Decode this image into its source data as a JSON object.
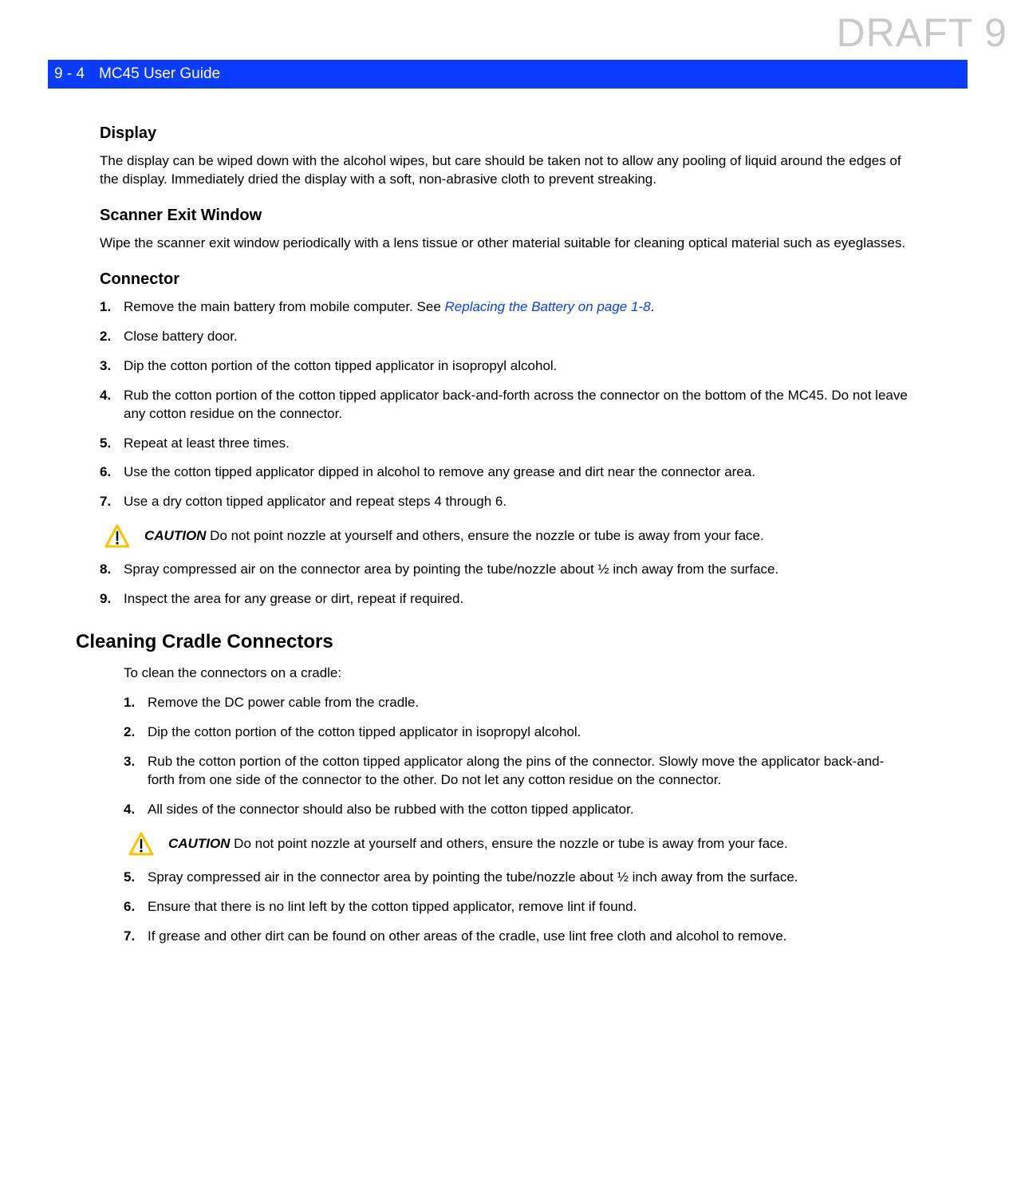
{
  "watermark_text": "DRAFT 9",
  "header": {
    "page_ref": "9 - 4",
    "title": "MC45 User Guide"
  },
  "header_style": {
    "bg_color": "#0a3cff",
    "text_color": "#ffffff",
    "font_size": 19
  },
  "watermark_style": {
    "color": "#c9c9c9",
    "font_size": 50
  },
  "link_style": {
    "color": "#0a3cff",
    "italic": true
  },
  "caution_icon": {
    "stroke_color": "#f9c400",
    "fill_color": "none",
    "bang_color": "#000000"
  },
  "sections": {
    "display": {
      "heading": "Display",
      "text": "The display can be wiped down with the alcohol wipes, but care should be taken not to allow any pooling of liquid around the edges of the display. Immediately dried the display with a soft, non-abrasive cloth to prevent streaking."
    },
    "scanner": {
      "heading": "Scanner Exit Window",
      "text": "Wipe the scanner exit window periodically with a lens tissue or other material suitable for cleaning optical material such as eyeglasses."
    },
    "connector": {
      "heading": "Connector",
      "steps_a": [
        {
          "pre": "Remove the main battery from mobile computer. See ",
          "link": "Replacing the Battery on page 1-8",
          "post": "."
        },
        {
          "pre": "Close battery door."
        },
        {
          "pre": "Dip the cotton portion of the cotton tipped applicator in isopropyl alcohol."
        },
        {
          "pre": "Rub the cotton portion of the cotton tipped applicator back-and-forth across the connector on the bottom of the MC45. Do not leave any cotton residue on the connector."
        },
        {
          "pre": "Repeat at least three times."
        },
        {
          "pre": "Use the cotton tipped applicator dipped in alcohol to remove any grease and dirt near the connector area."
        },
        {
          "pre": "Use a dry cotton tipped applicator and repeat steps 4 through 6."
        }
      ],
      "caution": {
        "label": "CAUTION",
        "text": " Do not point nozzle at yourself and others, ensure the nozzle or tube is away from your face."
      },
      "steps_b": [
        {
          "pre": "Spray compressed air on the connector area by pointing the tube/nozzle about ½ inch away from the surface."
        },
        {
          "pre": "Inspect the area for any grease or dirt, repeat if required."
        }
      ]
    },
    "cradle": {
      "heading": "Cleaning Cradle Connectors",
      "intro": "To clean the connectors on a cradle:",
      "steps_a": [
        {
          "pre": "Remove the DC power cable from the cradle."
        },
        {
          "pre": "Dip the cotton portion of the cotton tipped applicator in isopropyl alcohol."
        },
        {
          "pre": "Rub the cotton portion of the cotton tipped applicator along the pins of the connector. Slowly move the applicator back-and-forth from one side of the connector to the other. Do not let any cotton residue on the connector."
        },
        {
          "pre": "All sides of the connector should also be rubbed with the cotton tipped applicator."
        }
      ],
      "caution": {
        "label": "CAUTION",
        "text": " Do not point nozzle at yourself and others, ensure the nozzle or tube is away from your face."
      },
      "steps_b": [
        {
          "pre": "Spray compressed air in the connector area by pointing the tube/nozzle about ½ inch away from the surface."
        },
        {
          "pre": "Ensure that there is no lint left by the cotton tipped applicator, remove lint if found."
        },
        {
          "pre": "If grease and other dirt can be found on other areas of the cradle, use lint free cloth and alcohol to remove."
        }
      ]
    }
  }
}
